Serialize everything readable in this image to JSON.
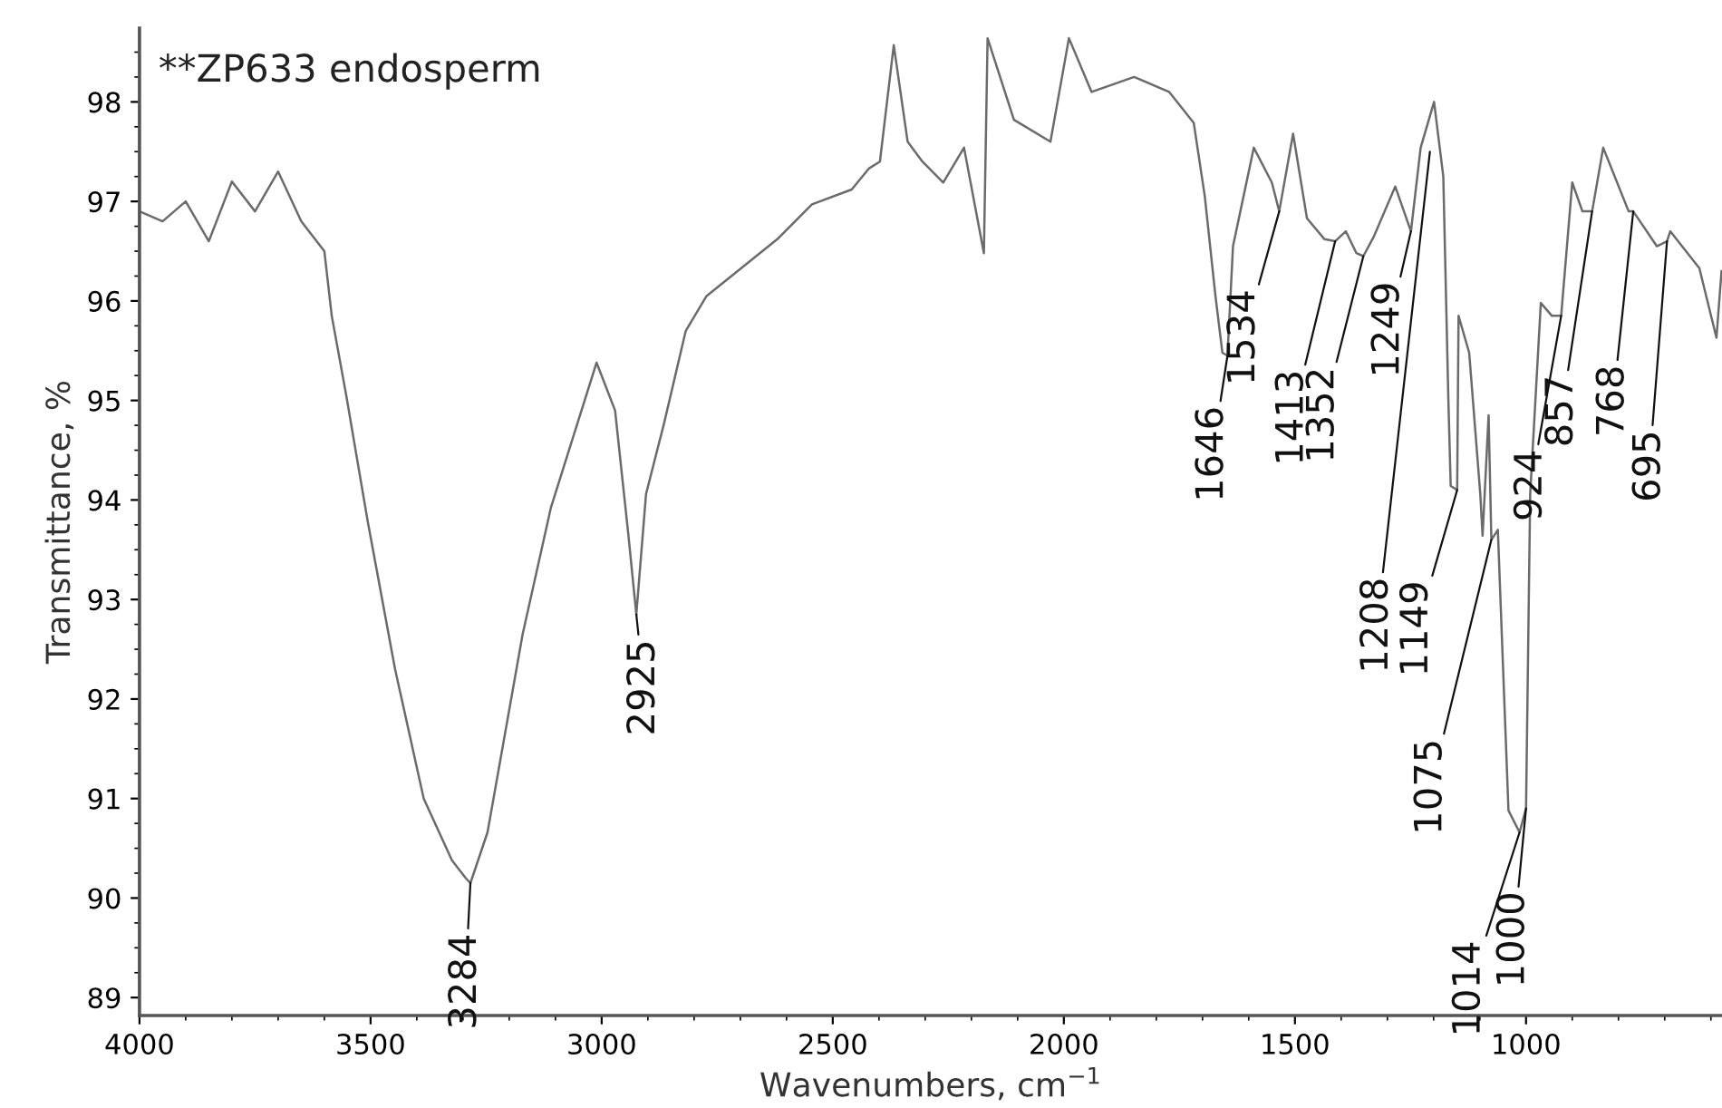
{
  "chart_data": {
    "type": "line",
    "title": "**ZP633 endosperm",
    "xlabel": "Wavenumbers, cm$^{−1}$",
    "ylabel": "Transmittance, %",
    "xlim": [
      4000,
      576
    ],
    "ylim": [
      88.82,
      98.74
    ],
    "xticks": [
      4000,
      3500,
      3000,
      2500,
      2000,
      1500,
      1000
    ],
    "yticks": [
      89,
      90,
      91,
      92,
      93,
      94,
      95,
      96,
      97,
      98
    ],
    "grid": false,
    "marker": "none",
    "line_style": "solid",
    "series": [
      {
        "color": "#6b6b6b",
        "x": [
          4000,
          3950,
          3900,
          3850,
          3800,
          3750,
          3700,
          3650,
          3600,
          3584,
          3553,
          3506,
          3447,
          3385,
          3324,
          3294,
          3284,
          3247,
          3171,
          3110,
          3047,
          3011,
          2971,
          2942,
          2925,
          2904,
          2865,
          2818,
          2773,
          2620,
          2545,
          2459,
          2422,
          2398,
          2368,
          2338,
          2306,
          2261,
          2216,
          2173,
          2165,
          2108,
          2029,
          1989,
          1940,
          1848,
          1772,
          1719,
          1695,
          1672,
          1657,
          1646,
          1634,
          1589,
          1550,
          1534,
          1504,
          1474,
          1436,
          1413,
          1390,
          1367,
          1352,
          1329,
          1283,
          1249,
          1228,
          1199,
          1179,
          1168,
          1163,
          1149,
          1146,
          1123,
          1099,
          1094,
          1081,
          1075,
          1061,
          1038,
          1014,
          1000,
          991,
          968,
          944,
          924,
          900,
          878,
          857,
          833,
          778,
          768,
          717,
          695,
          688,
          625,
          588,
          577
        ],
        "values": [
          96.9,
          96.8,
          97.0,
          96.6,
          97.2,
          96.9,
          97.3,
          96.8,
          96.5,
          95.85,
          95.06,
          93.78,
          92.3,
          91.0,
          90.38,
          90.2,
          90.15,
          90.66,
          92.65,
          93.92,
          94.85,
          95.38,
          94.9,
          93.64,
          92.85,
          94.06,
          94.77,
          95.7,
          96.05,
          96.62,
          96.97,
          97.12,
          97.33,
          97.4,
          98.57,
          97.6,
          97.4,
          97.19,
          97.54,
          96.48,
          98.64,
          97.82,
          97.6,
          98.64,
          98.1,
          98.25,
          98.1,
          97.79,
          97.05,
          96.05,
          95.48,
          95.45,
          96.55,
          97.54,
          97.19,
          96.9,
          97.68,
          96.83,
          96.62,
          96.6,
          96.7,
          96.48,
          96.45,
          96.65,
          97.15,
          96.7,
          97.54,
          98.0,
          97.25,
          95.0,
          94.14,
          94.1,
          95.85,
          95.48,
          94.06,
          93.64,
          94.85,
          93.6,
          93.7,
          90.88,
          90.66,
          90.9,
          94.06,
          95.98,
          95.85,
          95.85,
          97.19,
          96.9,
          96.9,
          97.54,
          96.9,
          96.9,
          96.55,
          96.6,
          96.7,
          96.33,
          95.63,
          96.3
        ]
      }
    ],
    "annotations": [
      {
        "text": "3284",
        "x": 3284,
        "y": 90.15
      },
      {
        "text": "2925",
        "x": 2925,
        "y": 92.85
      },
      {
        "text": "1646",
        "x": 1646,
        "y": 95.45
      },
      {
        "text": "1534",
        "x": 1534,
        "y": 96.9
      },
      {
        "text": "1413",
        "x": 1413,
        "y": 96.6
      },
      {
        "text": "1352",
        "x": 1352,
        "y": 96.45
      },
      {
        "text": "1249",
        "x": 1249,
        "y": 96.7
      },
      {
        "text": "1208",
        "x": 1208,
        "y": 97.5
      },
      {
        "text": "1149",
        "x": 1149,
        "y": 94.1
      },
      {
        "text": "1075",
        "x": 1075,
        "y": 93.6
      },
      {
        "text": "1014",
        "x": 1014,
        "y": 90.66
      },
      {
        "text": "1000",
        "x": 1000,
        "y": 90.9
      },
      {
        "text": "924",
        "x": 924,
        "y": 95.85
      },
      {
        "text": "857",
        "x": 857,
        "y": 96.9
      },
      {
        "text": "768",
        "x": 768,
        "y": 96.9
      },
      {
        "text": "695",
        "x": 695,
        "y": 96.6
      }
    ]
  }
}
